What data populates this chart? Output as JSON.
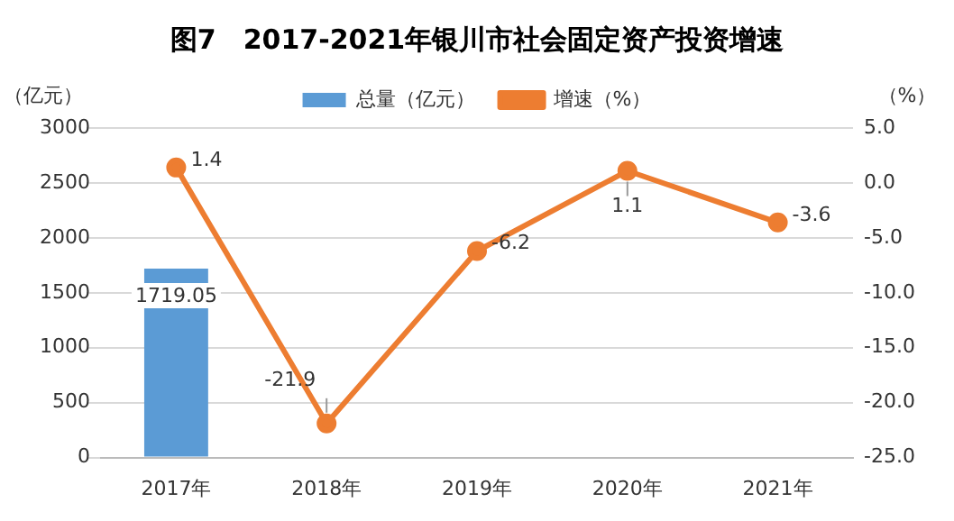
{
  "chart_data": {
    "type": "bar",
    "title": "图7　2017-2021年银川市社会固定资产投资增速",
    "ylabel": "（亿元）",
    "y2label": "（%）",
    "categories": [
      "2017年",
      "2018年",
      "2019年",
      "2020年",
      "2021年"
    ],
    "series": [
      {
        "name": "总量（亿元）",
        "type": "bar",
        "color": "#5b9bd5",
        "values": [
          1719.05,
          null,
          null,
          null,
          null
        ]
      },
      {
        "name": "增速（%）",
        "type": "line",
        "axis": "y2",
        "color": "#ed7d31",
        "marker": "circle",
        "values": [
          1.4,
          -21.9,
          -6.2,
          1.1,
          -3.6
        ]
      }
    ],
    "ylim": [
      0,
      3000
    ],
    "yticks": [
      0,
      500,
      1000,
      1500,
      2000,
      2500,
      3000
    ],
    "y2lim": [
      -25,
      5
    ],
    "y2ticks": [
      {
        "value": -25,
        "label": "-25.0"
      },
      {
        "value": -20,
        "label": "-20.0"
      },
      {
        "value": -15,
        "label": "-15.0"
      },
      {
        "value": -10,
        "label": "-10.0"
      },
      {
        "value": -5,
        "label": "-5.0"
      },
      {
        "value": 0,
        "label": "0.0"
      },
      {
        "value": 5,
        "label": "5.0"
      }
    ],
    "grid": "y",
    "legend": "top",
    "data_labels": true
  }
}
